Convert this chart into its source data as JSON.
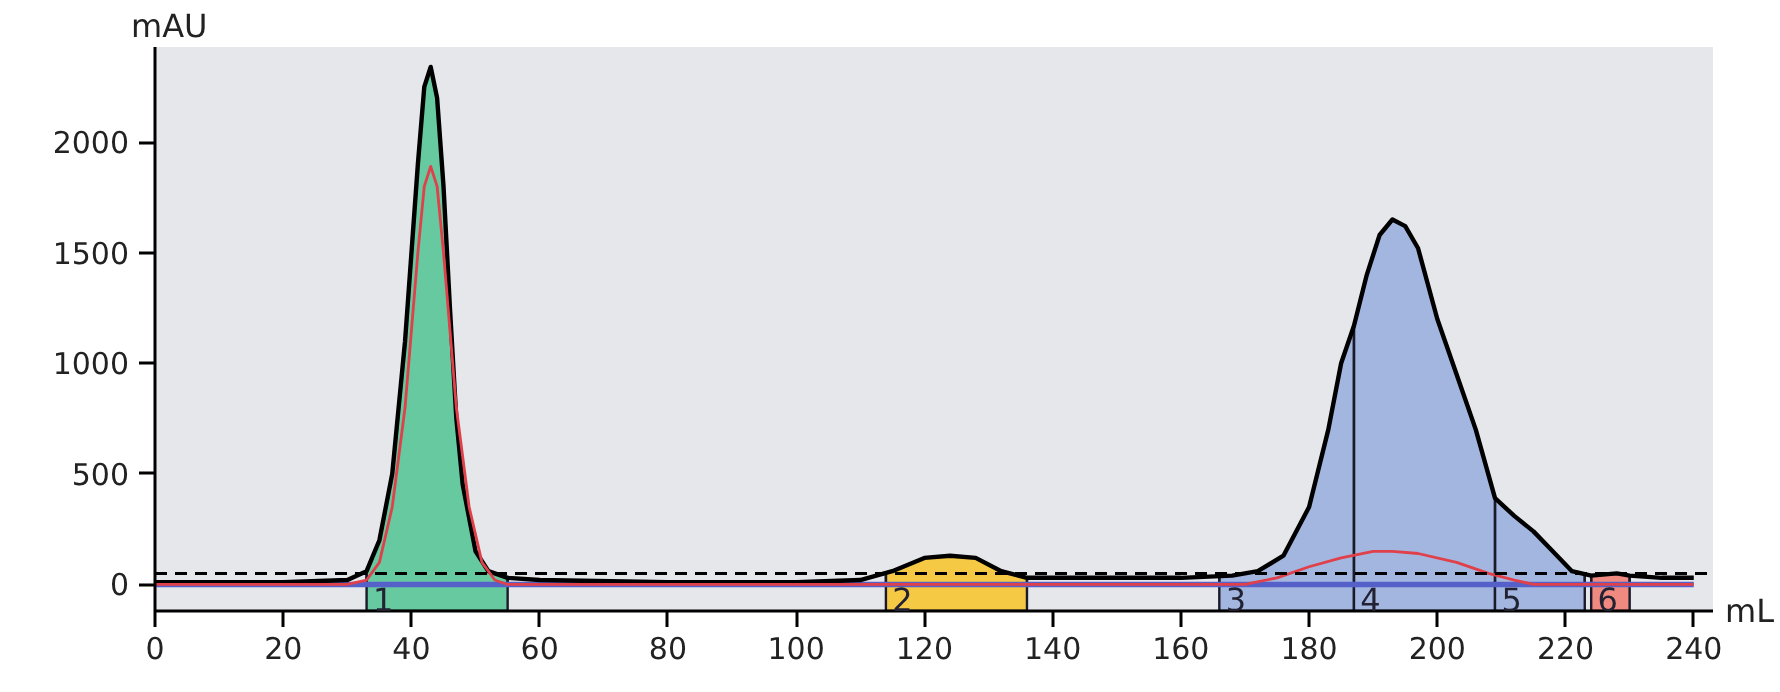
{
  "chart_data": {
    "type": "line",
    "xlabel": "mL",
    "ylabel": "mAU",
    "xlim": [
      0,
      243
    ],
    "ylim": [
      -120,
      2430
    ],
    "xticks": [
      0,
      20,
      40,
      60,
      80,
      100,
      120,
      140,
      160,
      180,
      200,
      220,
      240
    ],
    "yticks": [
      0,
      500,
      1000,
      1500,
      2000
    ],
    "marker": "none",
    "line_style": "solid",
    "series": [
      {
        "type": "area",
        "color": "#66c9a0",
        "x": [
          33,
          35,
          37,
          39,
          41,
          42,
          43,
          44,
          45,
          46,
          47,
          48,
          50,
          52,
          55
        ],
        "values": [
          60,
          200,
          500,
          1100,
          1900,
          2250,
          2340,
          2200,
          1800,
          1250,
          750,
          450,
          150,
          60,
          30
        ]
      },
      {
        "type": "area",
        "color": "#f6c945",
        "x": [
          114,
          115,
          120,
          124,
          128,
          132,
          136
        ],
        "values": [
          50,
          60,
          120,
          130,
          120,
          60,
          30
        ]
      },
      {
        "type": "area",
        "color": "#a3b6e0",
        "x": [
          166,
          168,
          172,
          176,
          180,
          183,
          185,
          187,
          189,
          191,
          193,
          195,
          197,
          200,
          203,
          206,
          209,
          212,
          215,
          218,
          221,
          223
        ],
        "values": [
          40,
          40,
          60,
          130,
          350,
          700,
          1000,
          1170,
          1400,
          1580,
          1650,
          1620,
          1520,
          1200,
          950,
          700,
          390,
          310,
          240,
          150,
          60,
          40
        ]
      },
      {
        "type": "area",
        "color": "#f08a80",
        "x": [
          224,
          228,
          230
        ],
        "values": [
          40,
          50,
          40
        ]
      },
      {
        "color": "#5560c8",
        "x": [
          0,
          240
        ],
        "values": [
          0,
          0
        ]
      },
      {
        "color": "#000000",
        "x": [
          0,
          20,
          30,
          33,
          35,
          37,
          39,
          41,
          42,
          43,
          44,
          45,
          46,
          47,
          48,
          50,
          52,
          55,
          60,
          80,
          100,
          110,
          115,
          120,
          124,
          128,
          132,
          136,
          140,
          160,
          168,
          172,
          176,
          180,
          183,
          185,
          187,
          189,
          191,
          193,
          195,
          197,
          200,
          203,
          206,
          209,
          212,
          215,
          218,
          221,
          224,
          228,
          230,
          235,
          240
        ],
        "values": [
          10,
          10,
          20,
          60,
          200,
          500,
          1100,
          1900,
          2250,
          2340,
          2200,
          1800,
          1250,
          750,
          450,
          150,
          60,
          30,
          20,
          10,
          10,
          20,
          60,
          120,
          130,
          120,
          60,
          30,
          30,
          30,
          40,
          60,
          130,
          350,
          700,
          1000,
          1170,
          1400,
          1580,
          1650,
          1620,
          1520,
          1200,
          950,
          700,
          390,
          310,
          240,
          150,
          60,
          40,
          50,
          40,
          30,
          30
        ]
      },
      {
        "color": "#e0404a",
        "x": [
          0,
          30,
          33,
          35,
          37,
          39,
          41,
          42,
          43,
          44,
          45,
          47,
          49,
          51,
          53,
          55,
          170,
          175,
          180,
          185,
          190,
          193,
          197,
          203,
          208,
          212,
          215,
          240
        ],
        "values": [
          0,
          0,
          20,
          100,
          350,
          800,
          1500,
          1800,
          1890,
          1800,
          1500,
          800,
          350,
          100,
          20,
          0,
          0,
          30,
          80,
          120,
          150,
          150,
          140,
          100,
          50,
          20,
          0,
          0
        ]
      }
    ],
    "ref_lines": [
      {
        "axis": "y",
        "value": 50,
        "color": "#000000",
        "line_style": "dashed"
      }
    ],
    "bands": [
      {
        "axis": "x",
        "from": 33,
        "to": 55,
        "label": "1",
        "color": "#66c9a0"
      },
      {
        "axis": "x",
        "from": 114,
        "to": 136,
        "label": "2",
        "color": "#f6c945"
      },
      {
        "axis": "x",
        "from": 166,
        "to": 187,
        "label": "3",
        "color": "#a3b6e0"
      },
      {
        "axis": "x",
        "from": 187,
        "to": 209,
        "label": "4",
        "color": "#a3b6e0"
      },
      {
        "axis": "x",
        "from": 209,
        "to": 223,
        "label": "5",
        "color": "#a3b6e0"
      },
      {
        "axis": "x",
        "from": 224,
        "to": 230,
        "label": "6",
        "color": "#f08a80"
      }
    ]
  }
}
